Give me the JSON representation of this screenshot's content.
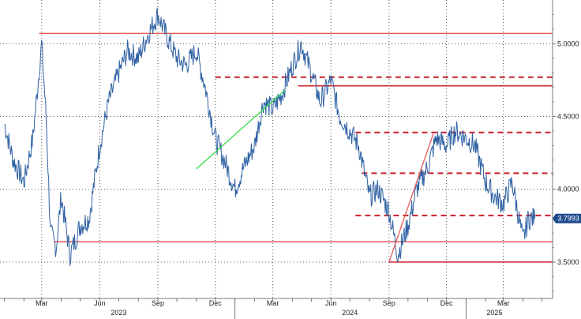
{
  "chart_data": {
    "type": "line",
    "title": "",
    "xlabel": "",
    "ylabel": "",
    "ylim": [
      3.25,
      5.3
    ],
    "y_ticks": [
      3.5,
      4.0,
      4.5,
      5.0
    ],
    "y_tick_labels": [
      "3.5000",
      "4.0000",
      "4.5000",
      "5.0000"
    ],
    "grid": true,
    "x_axis": {
      "month_ticks": [
        "Mar",
        "Jun",
        "Sep",
        "Dec",
        "Mar",
        "Jun",
        "Sep",
        "Dec",
        "Mar"
      ],
      "year_labels": [
        "2023",
        "2024",
        "2025"
      ]
    },
    "last_value_label": "3.7993",
    "series": [
      {
        "color": "#2f62a4",
        "x": [
          "2023-01-01",
          "2023-01-15",
          "2023-02-01",
          "2023-02-15",
          "2023-03-01",
          "2023-03-08",
          "2023-03-15",
          "2023-03-24",
          "2023-04-01",
          "2023-04-15",
          "2023-05-01",
          "2023-05-15",
          "2023-06-01",
          "2023-06-15",
          "2023-07-01",
          "2023-07-15",
          "2023-08-01",
          "2023-08-15",
          "2023-09-01",
          "2023-09-15",
          "2023-10-01",
          "2023-10-15",
          "2023-11-01",
          "2023-11-15",
          "2023-12-01",
          "2023-12-15",
          "2024-01-01",
          "2024-01-15",
          "2024-02-01",
          "2024-02-15",
          "2024-03-01",
          "2024-03-15",
          "2024-04-01",
          "2024-04-15",
          "2024-05-01",
          "2024-05-15",
          "2024-06-01",
          "2024-06-15",
          "2024-07-01",
          "2024-07-15",
          "2024-08-01",
          "2024-08-15",
          "2024-09-01",
          "2024-09-15",
          "2024-10-01",
          "2024-10-15",
          "2024-11-01",
          "2024-11-15",
          "2024-12-01",
          "2024-12-15",
          "2025-01-01",
          "2025-01-15",
          "2025-02-01",
          "2025-02-15",
          "2025-03-01",
          "2025-03-15",
          "2025-04-01",
          "2025-04-10",
          "2025-04-20"
        ],
        "y": [
          4.45,
          4.2,
          4.05,
          4.35,
          5.0,
          4.5,
          3.7,
          3.6,
          3.95,
          3.55,
          3.75,
          3.8,
          4.3,
          4.6,
          4.8,
          4.95,
          4.9,
          5.05,
          5.2,
          5.05,
          4.9,
          4.85,
          4.95,
          4.7,
          4.35,
          4.2,
          4.0,
          4.15,
          4.3,
          4.6,
          4.55,
          4.65,
          4.85,
          5.0,
          4.8,
          4.6,
          4.75,
          4.5,
          4.4,
          4.3,
          3.95,
          4.0,
          3.85,
          3.55,
          3.75,
          4.0,
          4.15,
          4.35,
          4.3,
          4.4,
          4.35,
          4.3,
          4.05,
          3.95,
          3.9,
          4.05,
          3.65,
          3.8,
          3.7993
        ]
      }
    ],
    "annotations": {
      "solid_lines": [
        {
          "value": 5.07,
          "color": "#e85a5a"
        },
        {
          "value": 3.64,
          "color": "#e85a5a"
        },
        {
          "value": 4.71,
          "color": "#cc1f2a"
        },
        {
          "value": 3.5,
          "color": "#cc1f2a"
        }
      ],
      "dashed_lines": [
        {
          "value": 4.77,
          "color": "#cc1f2a"
        },
        {
          "value": 4.39,
          "color": "#cc1f2a"
        },
        {
          "value": 4.11,
          "color": "#cc1f2a"
        },
        {
          "value": 3.82,
          "color": "#cc1f2a"
        }
      ],
      "trend_lines": [
        {
          "color": "#33dd44",
          "from": [
            "2023-11-01",
            4.14
          ],
          "to": [
            "2024-03-20",
            4.68
          ]
        },
        {
          "color": "#e85a5a",
          "from": [
            "2024-09-01",
            3.5
          ],
          "to": [
            "2024-11-10",
            4.38
          ]
        }
      ]
    },
    "colors": {
      "series": "#2f62a4",
      "grid": "#555555",
      "badge": "#1e4c8c",
      "axis": "#777777"
    }
  }
}
